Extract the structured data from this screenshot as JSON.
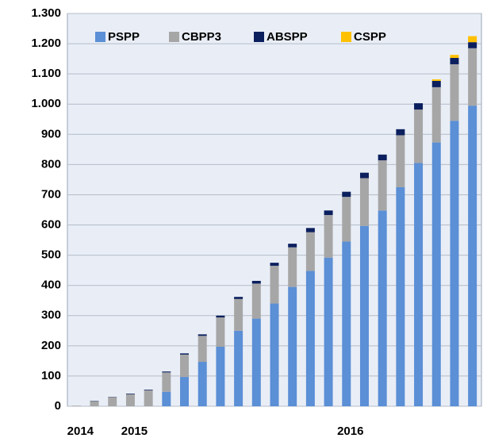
{
  "chart_data": {
    "type": "stacked-bar",
    "categories": [
      "2014",
      null,
      null,
      "2015",
      null,
      null,
      null,
      null,
      null,
      null,
      null,
      null,
      null,
      null,
      null,
      "2016",
      null,
      null,
      null,
      null,
      null,
      null,
      null
    ],
    "series": [
      {
        "name": "PSPP",
        "color": "#5b8fd6",
        "values": [
          0,
          0,
          0,
          0,
          0,
          48,
          97,
          147,
          197,
          250,
          290,
          340,
          395,
          448,
          492,
          545,
          597,
          648,
          725,
          805,
          873,
          945,
          995
        ]
      },
      {
        "name": "CBPP3",
        "color": "#a6a6a6",
        "values": [
          2,
          17,
          30,
          40,
          53,
          64,
          74,
          86,
          97,
          105,
          116,
          125,
          131,
          128,
          141,
          148,
          158,
          166,
          172,
          177,
          183,
          187,
          190
        ]
      },
      {
        "name": "ABSPP",
        "color": "#0b1f5e",
        "values": [
          0,
          1,
          1,
          2,
          2,
          3,
          4,
          5,
          6,
          7,
          9,
          10,
          12,
          14,
          15,
          17,
          18,
          19,
          20,
          21,
          21,
          21,
          20
        ]
      },
      {
        "name": "CSPP",
        "color": "#ffc000",
        "values": [
          0,
          0,
          0,
          0,
          0,
          0,
          0,
          0,
          0,
          0,
          0,
          0,
          0,
          0,
          0,
          0,
          0,
          0,
          0,
          0,
          5,
          10,
          20
        ]
      }
    ],
    "ylim": [
      0,
      1300
    ],
    "yticks": [
      0,
      100,
      200,
      300,
      400,
      500,
      600,
      700,
      800,
      900,
      {
        "value": 1000,
        "label": "1.000"
      },
      {
        "value": 1100,
        "label": "1.100"
      },
      {
        "value": 1200,
        "label": "1.200"
      },
      {
        "value": 1300,
        "label": "1.300"
      }
    ],
    "grid": true,
    "legend": "top"
  }
}
